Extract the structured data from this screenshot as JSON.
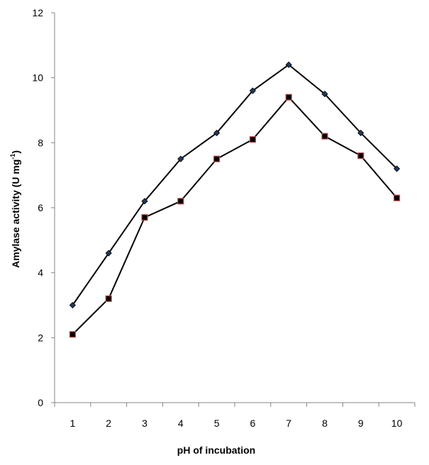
{
  "chart_data": {
    "type": "line",
    "title": "",
    "xlabel": "pH of incubation",
    "ylabel": {
      "main": "Amylase activity (U mg",
      "superscript": "-1",
      "close": ")"
    },
    "x": [
      1,
      2,
      3,
      4,
      5,
      6,
      7,
      8,
      9,
      10
    ],
    "x_tick_labels": [
      "1",
      "2",
      "3",
      "4",
      "5",
      "6",
      "7",
      "8",
      "9",
      "10"
    ],
    "ylim": [
      0,
      12
    ],
    "y_ticks": [
      0,
      2,
      4,
      6,
      8,
      10,
      12
    ],
    "y_tick_labels": [
      "0",
      "2",
      "4",
      "6",
      "8",
      "10",
      "12"
    ],
    "grid": false,
    "legend": "none",
    "series": [
      {
        "marker": "diamond",
        "color": "#1f3b5c",
        "line_color": "#000000",
        "values": [
          3.0,
          4.6,
          6.2,
          7.5,
          8.3,
          9.6,
          10.4,
          9.5,
          8.3,
          7.2
        ]
      },
      {
        "marker": "square",
        "color": "#000000",
        "edge_color": "#c0504d",
        "line_color": "#000000",
        "values": [
          2.1,
          3.2,
          5.7,
          6.2,
          7.5,
          8.1,
          9.4,
          8.2,
          7.6,
          6.3
        ]
      }
    ]
  }
}
